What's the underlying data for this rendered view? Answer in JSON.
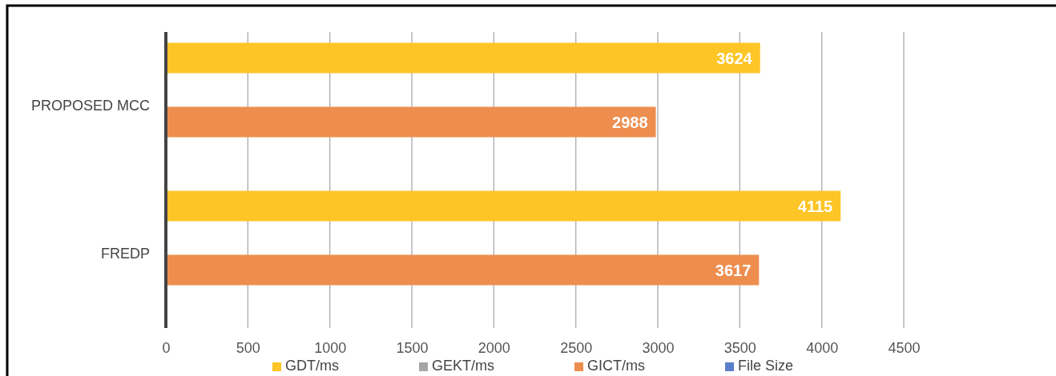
{
  "chart_data": {
    "type": "bar",
    "orientation": "horizontal",
    "categories": [
      "PROPOSED MCC",
      "FREDP"
    ],
    "series": [
      {
        "name": "GDT/ms",
        "color": "#fdc526",
        "values": [
          3624,
          4115
        ]
      },
      {
        "name": "GEKT/ms",
        "color": "#a5a5a5",
        "values": [
          null,
          null
        ]
      },
      {
        "name": "GICT/ms",
        "color": "#ed8e4f",
        "values": [
          2988,
          3617
        ]
      },
      {
        "name": "File Size",
        "color": "#5b7fc8",
        "values": [
          null,
          null
        ]
      }
    ],
    "xlim": [
      0,
      4500
    ],
    "xticks": [
      0,
      500,
      1000,
      1500,
      2000,
      2500,
      3000,
      3500,
      4000,
      4500
    ],
    "grid": "x",
    "legend": "bottom",
    "data_labels": true
  }
}
